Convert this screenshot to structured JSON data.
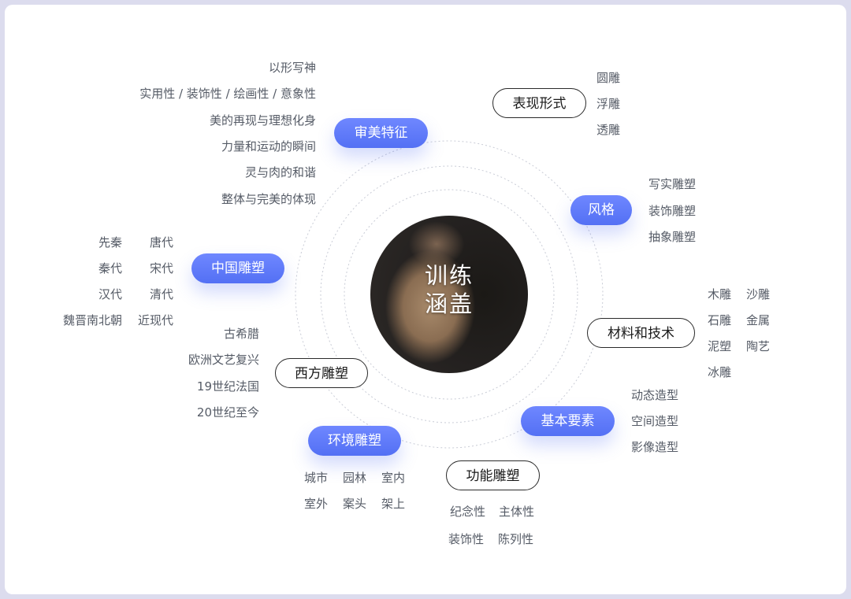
{
  "center": {
    "line1": "训练",
    "line2": "涵盖"
  },
  "nodes": {
    "aesthetic": {
      "label": "审美特征",
      "items": [
        "以形写神",
        "实用性 / 装饰性 / 绘画性 / 意象性",
        "美的再现与理想化身",
        "力量和运动的瞬间",
        "灵与肉的和谐",
        "整体与完美的体现"
      ]
    },
    "form": {
      "label": "表现形式",
      "items": [
        "圆雕",
        "浮雕",
        "透雕"
      ]
    },
    "style": {
      "label": "风格",
      "items": [
        "写实雕塑",
        "装饰雕塑",
        "抽象雕塑"
      ]
    },
    "chinese": {
      "label": "中国雕塑",
      "items_left": [
        "先秦",
        "秦代",
        "汉代",
        "魏晋南北朝"
      ],
      "items_right": [
        "唐代",
        "宋代",
        "清代",
        "近现代"
      ]
    },
    "material": {
      "label": "材料和技术",
      "items_left": [
        "木雕",
        "石雕",
        "泥塑",
        "冰雕"
      ],
      "items_right": [
        "沙雕",
        "金属",
        "陶艺"
      ]
    },
    "western": {
      "label": "西方雕塑",
      "items": [
        "古希腊",
        "欧洲文艺复兴",
        "19世纪法国",
        "20世纪至今"
      ]
    },
    "basic": {
      "label": "基本要素",
      "items": [
        "动态造型",
        "空间造型",
        "影像造型"
      ]
    },
    "environment": {
      "label": "环境雕塑",
      "row1": [
        "城市",
        "园林",
        "室内"
      ],
      "row2": [
        "室外",
        "案头",
        "架上"
      ]
    },
    "function": {
      "label": "功能雕塑",
      "row1": [
        "纪念性",
        "主体性"
      ],
      "row2": [
        "装饰性",
        "陈列性"
      ]
    }
  },
  "colors": {
    "accent": "#5a76f7",
    "text": "#555b66",
    "outline": "#2a2a2a",
    "background": "#dcdcee"
  }
}
